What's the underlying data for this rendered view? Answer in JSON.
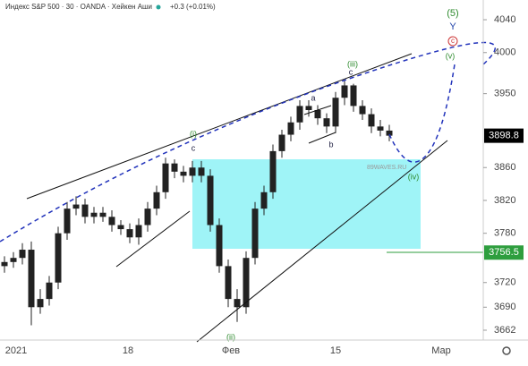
{
  "header": {
    "title": "Индекс S&P 500 · 30 · OANDA · Хейкен Аши",
    "change": "+0.3 (+0.01%)"
  },
  "chart_data": {
    "type": "candlestick",
    "color": "#222222",
    "open": [
      3740,
      3745,
      3750,
      3760,
      3690,
      3700,
      3720,
      3780,
      3810,
      3815,
      3800,
      3805,
      3800,
      3790,
      3785,
      3775,
      3790,
      3810,
      3830,
      3865,
      3855,
      3850,
      3860,
      3850,
      3790,
      3740,
      3700,
      3690,
      3750,
      3810,
      3830,
      3880,
      3900,
      3915,
      3935,
      3930,
      3920,
      3910,
      3945,
      3960,
      3935,
      3925,
      3910,
      3905
    ],
    "high": [
      3752,
      3757,
      3768,
      3770,
      3712,
      3728,
      3788,
      3818,
      3825,
      3822,
      3812,
      3812,
      3808,
      3796,
      3792,
      3798,
      3818,
      3838,
      3872,
      3870,
      3862,
      3868,
      3868,
      3858,
      3798,
      3748,
      3712,
      3758,
      3818,
      3838,
      3888,
      3906,
      3922,
      3942,
      3942,
      3936,
      3926,
      3952,
      3966,
      3962,
      3942,
      3932,
      3918,
      3912
    ],
    "low": [
      3732,
      3738,
      3742,
      3668,
      3682,
      3692,
      3712,
      3772,
      3802,
      3792,
      3792,
      3794,
      3782,
      3778,
      3768,
      3766,
      3782,
      3802,
      3822,
      3847,
      3842,
      3842,
      3842,
      3782,
      3732,
      3690,
      3672,
      3682,
      3742,
      3802,
      3822,
      3872,
      3892,
      3906,
      3922,
      3912,
      3902,
      3902,
      3936,
      3928,
      3918,
      3902,
      3898,
      3892
    ],
    "close": [
      3745,
      3750,
      3760,
      3690,
      3700,
      3720,
      3780,
      3810,
      3815,
      3800,
      3805,
      3800,
      3790,
      3785,
      3775,
      3790,
      3810,
      3830,
      3865,
      3855,
      3850,
      3860,
      3850,
      3790,
      3740,
      3700,
      3690,
      3750,
      3810,
      3830,
      3880,
      3900,
      3915,
      3935,
      3930,
      3920,
      3910,
      3945,
      3960,
      3935,
      3925,
      3910,
      3905,
      3898.8
    ],
    "x_labels": [
      "2021",
      "18",
      "Фев",
      "15",
      "Мар"
    ],
    "ylim": [
      3650,
      4064
    ],
    "yticks": [
      4040,
      4000,
      3950,
      3860,
      3820,
      3780,
      3720,
      3690,
      3662
    ],
    "price_labels": [
      {
        "value": 3898.8,
        "color": "#000000"
      },
      {
        "value": 3756.5,
        "color": "#2e9e3e"
      }
    ],
    "annotations": [
      "(5)",
      "Y",
      "c",
      "(v)",
      "(iii)",
      "c",
      "a",
      "b",
      "(i)",
      "c",
      "(ii)",
      "(iv)",
      "89WAVES.RU"
    ]
  }
}
